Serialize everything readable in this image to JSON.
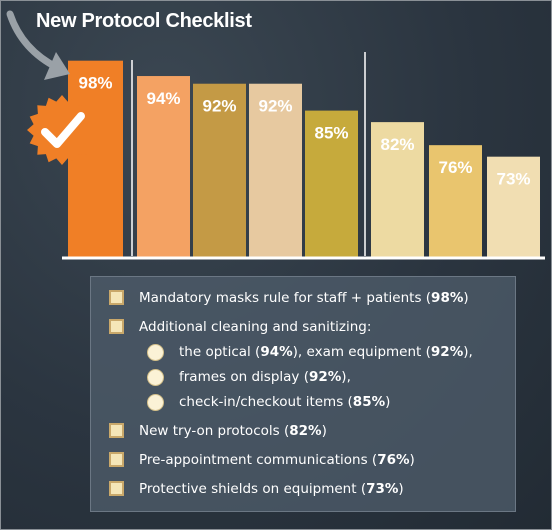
{
  "title": "New Protocol Checklist",
  "colors": {
    "bars": [
      "#f07f26",
      "#f4a263",
      "#c49a45",
      "#e7c9a0",
      "#c6aa3c",
      "#eddaa2",
      "#e9c56e",
      "#f1deb2"
    ],
    "background": "#2b3540",
    "check_badge": "#f07f26"
  },
  "icons": {
    "arrow": "curved-arrow-icon",
    "badge": "checkmark-badge-icon"
  },
  "chart_data": {
    "type": "bar",
    "categories": [
      "Mandatory masks rule for staff + patients",
      "the optical",
      "exam equipment",
      "frames on display",
      "check-in/checkout items",
      "New try-on protocols",
      "Pre-appointment communications",
      "Protective shields on equipment"
    ],
    "values": [
      98,
      94,
      92,
      92,
      85,
      82,
      76,
      73
    ],
    "labels": [
      "98%",
      "94%",
      "92%",
      "92%",
      "85%",
      "82%",
      "76%",
      "73%"
    ],
    "groups": [
      [
        0
      ],
      [
        1,
        2,
        3,
        4
      ],
      [
        5,
        6,
        7
      ]
    ],
    "ylim": [
      0,
      100
    ],
    "grid": false
  },
  "checklist": {
    "items": [
      {
        "text": "Mandatory masks rule for staff + patients (",
        "pct": "98%",
        "end": ")"
      },
      {
        "text": "Additional cleaning and sanitizing:"
      },
      {
        "text": "New try-on protocols (",
        "pct": "82%",
        "end": ")"
      },
      {
        "text": "Pre-appointment communications (",
        "pct": "76%",
        "end": ")"
      },
      {
        "text": "Protective shields on equipment (",
        "pct": "73%",
        "end": ")"
      }
    ],
    "subitems": [
      {
        "a": "the optical (",
        "p1": "94%",
        "b": "), exam equipment (",
        "p2": "92%",
        "c": "),",
        "d": ""
      },
      {
        "a": "frames on display (",
        "p1": "92%",
        "b": "),",
        "p2": "",
        "c": "",
        "d": ""
      },
      {
        "a": "check-in/checkout items (",
        "p1": "85%",
        "b": ")",
        "p2": "",
        "c": "",
        "d": ""
      }
    ]
  }
}
